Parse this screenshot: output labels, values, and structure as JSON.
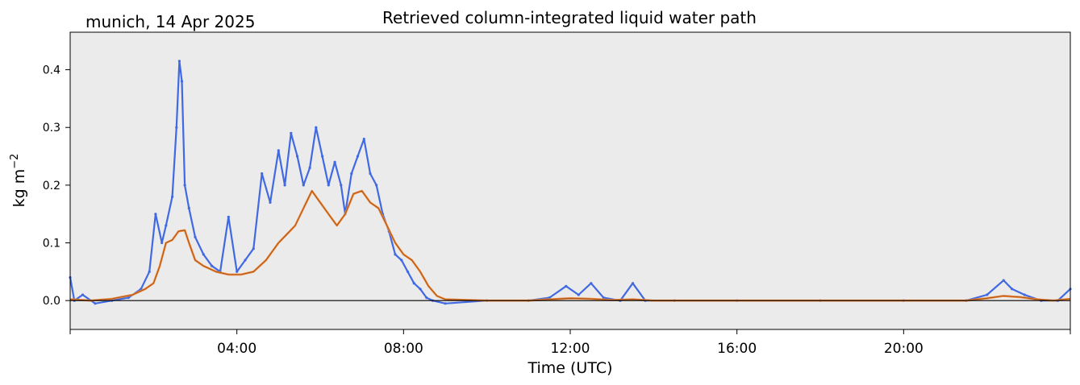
{
  "chart_data": {
    "type": "line",
    "title": "Retrieved column-integrated liquid water path",
    "subtitle": "munich, 14 Apr 2025",
    "xlabel": "Time (UTC)",
    "ylabel_main": "kg m",
    "ylabel_exp": "−2",
    "xlim": [
      0,
      24
    ],
    "ylim": [
      -0.05,
      0.465
    ],
    "x_tick_values": [
      4,
      8,
      12,
      16,
      20
    ],
    "x_tick_labels": [
      "04:00",
      "08:00",
      "12:00",
      "16:00",
      "20:00"
    ],
    "y_ticks": [
      "0.0",
      "0.1",
      "0.2",
      "0.3",
      "0.4"
    ],
    "y_tick_values": [
      0.0,
      0.1,
      0.2,
      0.3,
      0.4
    ],
    "zero_line": 0,
    "background": "#ebebeb",
    "series": [
      {
        "kind": "raw",
        "color": "#4169e1",
        "x": [
          0.0,
          0.1,
          0.3,
          0.6,
          1.0,
          1.4,
          1.7,
          1.9,
          2.05,
          2.2,
          2.3,
          2.45,
          2.55,
          2.62,
          2.68,
          2.75,
          2.85,
          3.0,
          3.2,
          3.4,
          3.6,
          3.8,
          4.0,
          4.2,
          4.4,
          4.6,
          4.8,
          5.0,
          5.15,
          5.3,
          5.45,
          5.6,
          5.75,
          5.9,
          6.05,
          6.2,
          6.35,
          6.5,
          6.6,
          6.75,
          6.9,
          7.05,
          7.2,
          7.35,
          7.5,
          7.65,
          7.8,
          7.95,
          8.1,
          8.25,
          8.4,
          8.55,
          8.7,
          9.0,
          10.0,
          11.0,
          11.5,
          11.9,
          12.2,
          12.5,
          12.8,
          13.2,
          13.5,
          13.8,
          14.5,
          16.0,
          18.0,
          20.0,
          21.5,
          22.0,
          22.4,
          22.6,
          22.9,
          23.3,
          23.7,
          24.0
        ],
        "y": [
          0.04,
          0.0,
          0.01,
          -0.005,
          0.0,
          0.005,
          0.02,
          0.05,
          0.15,
          0.1,
          0.13,
          0.18,
          0.3,
          0.415,
          0.38,
          0.2,
          0.16,
          0.11,
          0.08,
          0.06,
          0.05,
          0.145,
          0.05,
          0.07,
          0.09,
          0.22,
          0.17,
          0.26,
          0.2,
          0.29,
          0.25,
          0.2,
          0.23,
          0.3,
          0.25,
          0.2,
          0.24,
          0.2,
          0.15,
          0.22,
          0.25,
          0.28,
          0.22,
          0.2,
          0.15,
          0.12,
          0.08,
          0.07,
          0.05,
          0.03,
          0.02,
          0.005,
          0.0,
          -0.005,
          0.0,
          0.0,
          0.005,
          0.025,
          0.01,
          0.03,
          0.005,
          0.0,
          0.03,
          0.0,
          0.0,
          0.0,
          0.0,
          0.0,
          0.0,
          0.01,
          0.035,
          0.02,
          0.01,
          0.0,
          0.0,
          0.02
        ]
      },
      {
        "kind": "smoothed",
        "color": "#f08a3c",
        "x": [
          0.0,
          0.5,
          1.0,
          1.5,
          1.8,
          2.0,
          2.15,
          2.3,
          2.45,
          2.6,
          2.75,
          2.85,
          3.0,
          3.2,
          3.5,
          3.8,
          4.1,
          4.4,
          4.7,
          5.0,
          5.2,
          5.4,
          5.6,
          5.8,
          6.0,
          6.2,
          6.4,
          6.6,
          6.8,
          7.0,
          7.2,
          7.4,
          7.6,
          7.8,
          8.0,
          8.2,
          8.4,
          8.6,
          8.8,
          9.0,
          10.0,
          11.0,
          11.5,
          12.0,
          12.5,
          13.0,
          13.5,
          14.0,
          16.0,
          18.0,
          20.0,
          21.5,
          22.0,
          22.4,
          22.8,
          23.2,
          23.6,
          24.0
        ],
        "y": [
          0.002,
          0.0,
          0.003,
          0.01,
          0.02,
          0.03,
          0.06,
          0.1,
          0.105,
          0.12,
          0.122,
          0.1,
          0.07,
          0.06,
          0.05,
          0.045,
          0.045,
          0.05,
          0.07,
          0.1,
          0.115,
          0.13,
          0.16,
          0.19,
          0.17,
          0.15,
          0.13,
          0.15,
          0.185,
          0.19,
          0.17,
          0.16,
          0.13,
          0.1,
          0.08,
          0.07,
          0.05,
          0.025,
          0.008,
          0.002,
          0.0,
          0.0,
          0.002,
          0.004,
          0.003,
          0.001,
          0.002,
          0.0,
          0.0,
          0.0,
          0.0,
          0.0,
          0.004,
          0.008,
          0.006,
          0.002,
          0.0,
          0.003
        ]
      }
    ]
  }
}
